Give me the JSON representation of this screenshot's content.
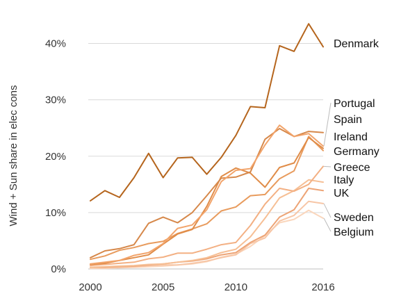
{
  "chart_data": {
    "type": "line",
    "title": "",
    "xlabel": "",
    "ylabel": "Wind + Sun share in elec cons",
    "xlim": [
      2000,
      2016
    ],
    "ylim": [
      0,
      45
    ],
    "x_ticks": [
      "2000",
      "2005",
      "2010",
      "2016"
    ],
    "y_ticks": [
      "0%",
      "10%",
      "20%",
      "30%",
      "40%"
    ],
    "grid": "horizontal",
    "legend": "labels at right end of lines",
    "x": [
      2000,
      2001,
      2002,
      2003,
      2004,
      2005,
      2006,
      2007,
      2008,
      2009,
      2010,
      2011,
      2012,
      2013,
      2014,
      2015,
      2016
    ],
    "series": [
      {
        "name": "Denmark",
        "color": "#b5651d",
        "values": [
          12.1,
          13.9,
          12.7,
          16.2,
          20.5,
          16.2,
          19.7,
          19.8,
          16.8,
          19.8,
          23.7,
          28.8,
          28.6,
          39.6,
          38.6,
          43.5,
          39.4
        ]
      },
      {
        "name": "Portugal",
        "color": "#f2a46b",
        "values": [
          0.9,
          1.2,
          1.5,
          2.4,
          2.9,
          4.5,
          7.2,
          7.8,
          10.5,
          15.5,
          17.5,
          17.8,
          22.0,
          25.5,
          23.5,
          24.0,
          21.8
        ]
      },
      {
        "name": "Spain",
        "color": "#d6884a",
        "values": [
          2.0,
          3.2,
          3.6,
          4.3,
          8.1,
          9.2,
          8.2,
          10.0,
          13.0,
          16.1,
          16.3,
          17.2,
          23.0,
          24.9,
          23.5,
          24.4,
          24.2
        ]
      },
      {
        "name": "Ireland",
        "color": "#e08c48",
        "values": [
          0.8,
          1.0,
          1.5,
          2.0,
          2.5,
          4.4,
          6.2,
          7.0,
          11.1,
          16.4,
          17.9,
          17.0,
          14.5,
          18.0,
          18.8,
          23.3,
          21.4
        ]
      },
      {
        "name": "Germany",
        "color": "#e89b5d",
        "values": [
          1.7,
          2.3,
          3.3,
          3.8,
          4.5,
          4.9,
          6.3,
          7.1,
          8.0,
          10.3,
          11.0,
          13.0,
          13.2,
          16.0,
          17.4,
          23.5,
          21.0
        ]
      },
      {
        "name": "Greece",
        "color": "#f3b083",
        "values": [
          0.6,
          0.8,
          1.0,
          1.2,
          1.8,
          2.1,
          2.8,
          2.8,
          3.5,
          4.3,
          4.7,
          7.7,
          11.5,
          14.3,
          13.8,
          15.0,
          18.2
        ]
      },
      {
        "name": "Italy",
        "color": "#f6bf95",
        "values": [
          0.3,
          0.4,
          0.5,
          0.6,
          0.8,
          0.9,
          1.2,
          1.5,
          2.0,
          2.9,
          3.5,
          5.7,
          9.0,
          12.6,
          13.9,
          15.8,
          15.4
        ]
      },
      {
        "name": "UK",
        "color": "#eda476",
        "values": [
          0.3,
          0.3,
          0.4,
          0.5,
          0.7,
          0.9,
          1.2,
          1.4,
          1.8,
          2.5,
          2.9,
          4.7,
          6.0,
          9.2,
          10.5,
          14.3,
          13.9
        ]
      },
      {
        "name": "Sweden",
        "color": "#f7c6a6",
        "values": [
          0.3,
          0.3,
          0.4,
          0.4,
          0.6,
          0.7,
          0.7,
          1.0,
          1.4,
          2.0,
          2.5,
          4.5,
          5.5,
          8.5,
          9.5,
          12.0,
          11.6
        ]
      },
      {
        "name": "Belgium",
        "color": "#fad6bc",
        "values": [
          0.1,
          0.1,
          0.2,
          0.3,
          0.4,
          0.5,
          0.7,
          0.9,
          1.3,
          2.1,
          2.6,
          4.0,
          5.9,
          8.2,
          8.8,
          10.4,
          9.0
        ]
      }
    ]
  }
}
